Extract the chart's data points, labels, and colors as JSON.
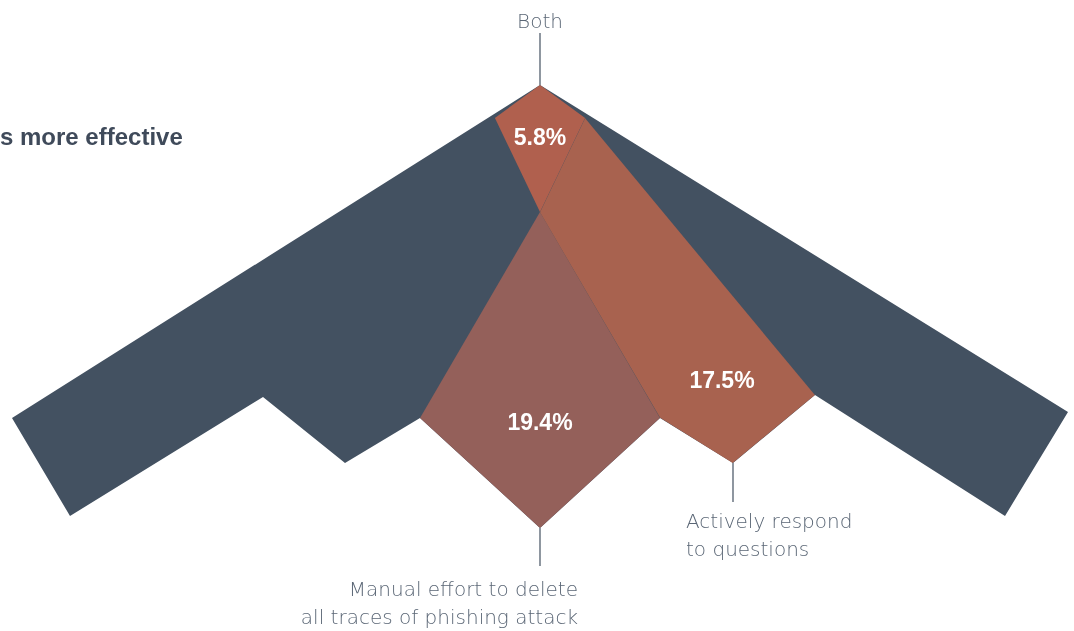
{
  "chart_data": {
    "type": "other",
    "title": "s more effective",
    "categories": [
      "Both",
      "Manual effort to delete\nall traces of phishing attack",
      "Actively respond\nto questions"
    ],
    "values": [
      5.8,
      19.4,
      17.5
    ],
    "value_labels": [
      "5.8%",
      "19.4%",
      "17.5%"
    ],
    "colors": [
      "#b0604e",
      "#94605a",
      "#a8624f"
    ]
  }
}
